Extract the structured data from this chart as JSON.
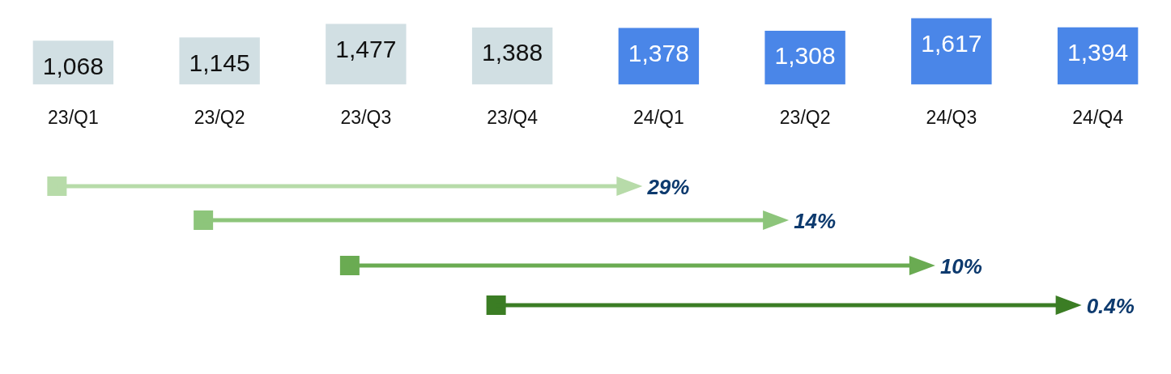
{
  "chart_data": {
    "type": "bar",
    "categories": [
      "23/Q1",
      "23/Q2",
      "23/Q3",
      "23/Q4",
      "24/Q1",
      "23/Q2",
      "24/Q3",
      "24/Q4"
    ],
    "values": [
      1068,
      1145,
      1477,
      1388,
      1378,
      1308,
      1617,
      1394
    ],
    "colors": [
      "#d1dfe3",
      "#d1dfe3",
      "#d1dfe3",
      "#d1dfe3",
      "#4a86e8",
      "#4a86e8",
      "#4a86e8",
      "#4a86e8"
    ],
    "value_labels": [
      "1,068",
      "1,145",
      "1,477",
      "1,388",
      "1,378",
      "1,308",
      "1,617",
      "1,394"
    ],
    "annotations": [
      "29%",
      "14%",
      "10%",
      "0.4%"
    ]
  }
}
